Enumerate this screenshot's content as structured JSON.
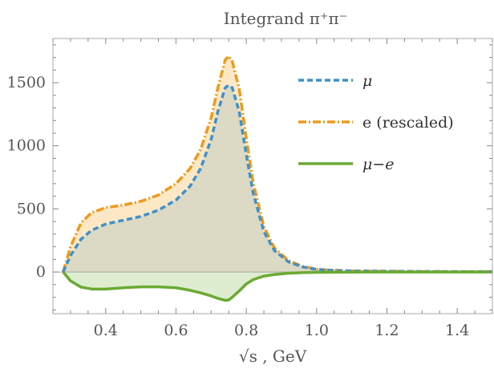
{
  "chart_data": {
    "type": "area",
    "title": "Integrand π⁺π⁻",
    "xlabel": "√s , GeV",
    "ylabel": "",
    "xlim": [
      0.25,
      1.5
    ],
    "ylim": [
      -330,
      1850
    ],
    "xticks": [
      0.4,
      0.6,
      0.8,
      1.0,
      1.2,
      1.4
    ],
    "xtick_labels": [
      "0.4",
      "0.6",
      "0.8",
      "1.0",
      "1.2",
      "1.4"
    ],
    "yticks": [
      0,
      500,
      1000,
      1500
    ],
    "ytick_labels": [
      "0",
      "500",
      "1000",
      "1500"
    ],
    "grid": false,
    "legend_placement": "top-right",
    "series": [
      {
        "name": "μ",
        "style": "dashed",
        "color": "#3f91c9",
        "fill": "#d6d6c3",
        "x": [
          0.279,
          0.3,
          0.33,
          0.36,
          0.4,
          0.45,
          0.5,
          0.55,
          0.6,
          0.64,
          0.67,
          0.7,
          0.72,
          0.74,
          0.75,
          0.76,
          0.78,
          0.8,
          0.82,
          0.85,
          0.88,
          0.92,
          0.96,
          1.0,
          1.05,
          1.1,
          1.2,
          1.3,
          1.4,
          1.5
        ],
        "values": [
          0,
          130,
          260,
          330,
          380,
          410,
          440,
          490,
          570,
          680,
          820,
          1050,
          1280,
          1460,
          1480,
          1460,
          1270,
          930,
          620,
          320,
          170,
          80,
          40,
          20,
          12,
          8,
          6,
          4,
          3,
          3
        ]
      },
      {
        "name": "e (rescaled)",
        "style": "dash-dot",
        "color": "#ee9a1b",
        "fill": "#fde8c6",
        "x": [
          0.279,
          0.3,
          0.33,
          0.36,
          0.4,
          0.45,
          0.5,
          0.55,
          0.6,
          0.64,
          0.67,
          0.7,
          0.72,
          0.74,
          0.75,
          0.76,
          0.78,
          0.8,
          0.82,
          0.85,
          0.88,
          0.92,
          0.96,
          1.0,
          1.05,
          1.1,
          1.2,
          1.3,
          1.4,
          1.5
        ],
        "values": [
          0,
          200,
          390,
          470,
          510,
          530,
          560,
          610,
          700,
          820,
          970,
          1220,
          1470,
          1680,
          1710,
          1670,
          1450,
          1060,
          700,
          360,
          190,
          90,
          45,
          22,
          14,
          9,
          6,
          4,
          3,
          3
        ]
      },
      {
        "name": "μ−e",
        "style": "solid",
        "color": "#6aaa33",
        "fill": "#deecd0",
        "x": [
          0.279,
          0.3,
          0.33,
          0.36,
          0.4,
          0.45,
          0.5,
          0.55,
          0.6,
          0.64,
          0.67,
          0.7,
          0.72,
          0.74,
          0.75,
          0.76,
          0.78,
          0.8,
          0.82,
          0.85,
          0.88,
          0.92,
          0.96,
          1.0,
          1.05,
          1.1,
          1.2,
          1.3,
          1.4,
          1.5
        ],
        "values": [
          0,
          -70,
          -120,
          -135,
          -135,
          -125,
          -118,
          -118,
          -125,
          -145,
          -165,
          -190,
          -210,
          -225,
          -222,
          -200,
          -150,
          -95,
          -60,
          -33,
          -20,
          -10,
          -5,
          -3,
          -2,
          -1,
          0,
          0,
          0,
          0
        ]
      }
    ]
  }
}
